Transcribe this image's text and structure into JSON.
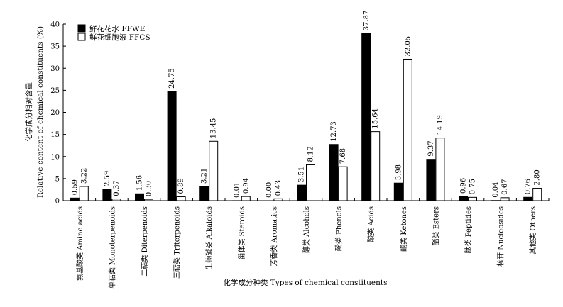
{
  "chart_data": {
    "type": "bar",
    "ylabel_zh": "化学成分相对含量",
    "ylabel": "Relative content of chemical constituents (%)",
    "xlabel": "化学成分种类 Types of chemical constituents",
    "ylim": [
      0,
      40
    ],
    "yticks": [
      "0",
      "5",
      "10",
      "15",
      "20",
      "25",
      "30",
      "35",
      "40"
    ],
    "legend_position": "top-left",
    "grid": false,
    "categories": [
      "氨基酸类 Amino acids",
      "单萜类 Monoterpenoids",
      "二萜类 Diterpenoids",
      "三萜类 Triterpenoids",
      "生物碱类 Alkaloids",
      "甾体类 Steroids",
      "芳香类 Aromatics",
      "醇类 Alcohols",
      "酚类 Phenols",
      "酸类 Acids",
      "酮类 Ketones",
      "酯类 Esters",
      "肽类 Peptides",
      "核苷 Nucleosides",
      "其他类 Others"
    ],
    "series": [
      {
        "name": "鲜花花水 FFWE",
        "color": "#000000",
        "values": [
          0.59,
          2.59,
          1.56,
          24.75,
          3.21,
          0.01,
          0.0,
          3.51,
          12.73,
          37.87,
          3.98,
          9.37,
          0.96,
          0.04,
          0.76
        ],
        "labels": [
          "0.59",
          "2.59",
          "1.56",
          "24.75",
          "3.21",
          "0.01",
          "0.00",
          "3.51",
          "12.73",
          "37.87",
          "3.98",
          "9.37",
          "0.96",
          "0.04",
          "0.76"
        ]
      },
      {
        "name": "鲜花细胞液 FFCS",
        "color": "#ffffff",
        "values": [
          3.22,
          0.37,
          0.3,
          0.89,
          13.45,
          0.94,
          0.43,
          8.12,
          7.68,
          15.64,
          32.05,
          14.19,
          0.75,
          0.67,
          2.8
        ],
        "labels": [
          "3.22",
          "0.37",
          "0.30",
          "0.89",
          "13.45",
          "0.94",
          "0.43",
          "8.12",
          "7.68",
          "15.64",
          "32.05",
          "14.19",
          "0.75",
          "0.67",
          "2.80"
        ]
      }
    ]
  }
}
